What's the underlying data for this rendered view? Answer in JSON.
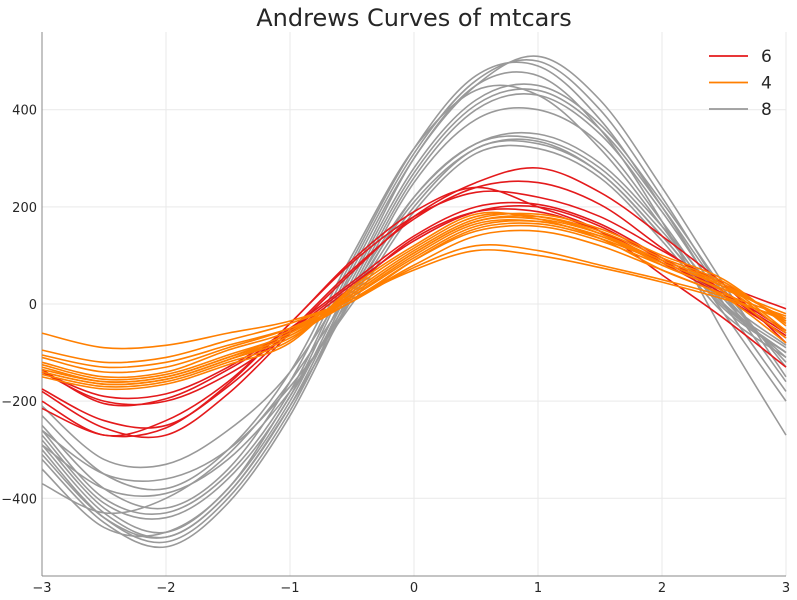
{
  "chart_data": {
    "type": "line",
    "title": "Andrews Curves of mtcars",
    "xlabel": "",
    "ylabel": "",
    "xlim": [
      -3,
      3
    ],
    "ylim": [
      -560,
      560
    ],
    "x_ticks": [
      -3,
      -2,
      -1,
      0,
      1,
      2,
      3
    ],
    "x_tick_labels": [
      "−3",
      "−2",
      "−1",
      "0",
      "1",
      "2",
      "3"
    ],
    "y_ticks": [
      -400,
      -200,
      0,
      200,
      400
    ],
    "y_tick_labels": [
      "−400",
      "−200",
      "0",
      "200",
      "400"
    ],
    "grid": true,
    "legend_position": "top-right",
    "x_samples": [
      -3,
      -2.5,
      -2,
      -1.5,
      -1,
      -0.5,
      0,
      0.5,
      1,
      1.5,
      2,
      2.5,
      3
    ],
    "series": [
      {
        "name": "6",
        "color": "#e41a1c",
        "curves": [
          [
            -135,
            -205,
            -195,
            -135,
            -55,
            40,
            130,
            190,
            200,
            160,
            90,
            20,
            -60
          ],
          [
            -140,
            -190,
            -185,
            -130,
            -50,
            45,
            140,
            200,
            205,
            165,
            95,
            25,
            -55
          ],
          [
            -140,
            -200,
            -200,
            -145,
            -60,
            35,
            135,
            190,
            190,
            150,
            85,
            15,
            -65
          ],
          [
            -175,
            -240,
            -250,
            -170,
            -55,
            70,
            175,
            240,
            250,
            205,
            115,
            25,
            -70
          ],
          [
            -180,
            -255,
            -270,
            -185,
            -60,
            65,
            180,
            250,
            280,
            230,
            140,
            40,
            -80
          ],
          [
            -200,
            -270,
            -240,
            -160,
            -40,
            90,
            190,
            240,
            200,
            150,
            60,
            -30,
            -130
          ],
          [
            -215,
            -270,
            -255,
            -165,
            -40,
            85,
            180,
            230,
            220,
            180,
            110,
            40,
            -10
          ]
        ]
      },
      {
        "name": "4",
        "color": "#ff7f00",
        "curves": [
          [
            -60,
            -90,
            -85,
            -60,
            -35,
            10,
            80,
            140,
            150,
            120,
            70,
            20,
            -25
          ],
          [
            -95,
            -120,
            -110,
            -75,
            -40,
            10,
            90,
            150,
            160,
            130,
            80,
            30,
            -20
          ],
          [
            -105,
            -130,
            -120,
            -85,
            -50,
            5,
            90,
            155,
            165,
            135,
            85,
            35,
            -30
          ],
          [
            -110,
            -140,
            -130,
            -90,
            -50,
            15,
            95,
            160,
            170,
            140,
            90,
            40,
            -35
          ],
          [
            -120,
            -150,
            -140,
            -95,
            -55,
            20,
            105,
            170,
            180,
            150,
            95,
            45,
            -40
          ],
          [
            -125,
            -155,
            -145,
            -105,
            -60,
            25,
            110,
            175,
            185,
            155,
            100,
            50,
            -45
          ],
          [
            -130,
            -160,
            -150,
            -110,
            -65,
            20,
            105,
            170,
            175,
            145,
            90,
            40,
            -55
          ],
          [
            -140,
            -165,
            -155,
            -115,
            -70,
            15,
            100,
            165,
            170,
            140,
            85,
            35,
            -60
          ],
          [
            -145,
            -170,
            -160,
            -120,
            -75,
            30,
            115,
            180,
            180,
            145,
            80,
            25,
            -70
          ],
          [
            -150,
            -175,
            -165,
            -125,
            -80,
            35,
            120,
            185,
            175,
            135,
            70,
            15,
            -80
          ],
          [
            -135,
            -160,
            -150,
            -110,
            -60,
            10,
            70,
            110,
            100,
            75,
            45,
            10,
            -30
          ],
          [
            -140,
            -165,
            -155,
            -115,
            -65,
            5,
            75,
            120,
            110,
            80,
            50,
            15,
            -35
          ]
        ]
      },
      {
        "name": "8",
        "color": "#999999",
        "curves": [
          [
            -210,
            -320,
            -330,
            -260,
            -140,
            60,
            300,
            450,
            470,
            360,
            170,
            -60,
            -270
          ],
          [
            -230,
            -350,
            -380,
            -300,
            -140,
            100,
            320,
            440,
            430,
            320,
            160,
            -20,
            -200
          ],
          [
            -250,
            -380,
            -420,
            -340,
            -160,
            90,
            320,
            470,
            490,
            380,
            200,
            0,
            -180
          ],
          [
            -260,
            -400,
            -430,
            -350,
            -180,
            80,
            310,
            460,
            500,
            400,
            220,
            20,
            -160
          ],
          [
            -270,
            -410,
            -440,
            -360,
            -190,
            70,
            300,
            450,
            510,
            420,
            240,
            40,
            -150
          ],
          [
            -280,
            -420,
            -470,
            -380,
            -200,
            50,
            280,
            420,
            450,
            370,
            210,
            30,
            -130
          ],
          [
            -290,
            -430,
            -480,
            -390,
            -210,
            40,
            270,
            410,
            440,
            360,
            200,
            20,
            -120
          ],
          [
            -300,
            -440,
            -490,
            -400,
            -220,
            30,
            260,
            400,
            430,
            350,
            190,
            10,
            -110
          ],
          [
            -320,
            -450,
            -500,
            -410,
            -230,
            20,
            250,
            380,
            400,
            330,
            170,
            0,
            -100
          ],
          [
            -310,
            -440,
            -480,
            -390,
            -210,
            10,
            220,
            330,
            340,
            280,
            150,
            0,
            -90
          ],
          [
            -340,
            -460,
            -470,
            -380,
            -190,
            20,
            210,
            320,
            335,
            270,
            140,
            -5,
            -100
          ],
          [
            -370,
            -430,
            -400,
            -310,
            -160,
            30,
            220,
            330,
            350,
            290,
            160,
            10,
            -85
          ],
          [
            -290,
            -380,
            -390,
            -320,
            -180,
            10,
            200,
            320,
            330,
            270,
            140,
            -10,
            -100
          ],
          [
            -260,
            -350,
            -360,
            -300,
            -170,
            0,
            190,
            310,
            320,
            260,
            130,
            -20,
            -110
          ]
        ]
      }
    ]
  }
}
